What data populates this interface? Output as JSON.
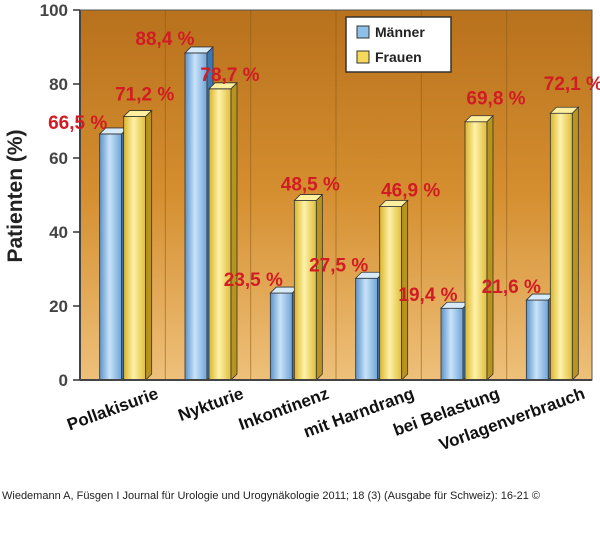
{
  "chart_data": {
    "type": "bar",
    "title": "",
    "xlabel": "",
    "ylabel": "Patienten (%)",
    "ylim": [
      0,
      100
    ],
    "yticks": [
      0,
      20,
      40,
      60,
      80,
      100
    ],
    "categories": [
      "Pollakisurie",
      "Nykturie",
      "Inkontinenz",
      "mit Harndrang",
      "bei Belastung",
      "Vorlagenverbrauch"
    ],
    "series": [
      {
        "name": "Männer",
        "color": "#8fc0ea",
        "values": [
          66.5,
          88.4,
          23.5,
          27.5,
          19.4,
          21.6
        ],
        "labels": [
          "66,5 %",
          "88,4 %",
          "23,5 %",
          "27,5 %",
          "19,4 %",
          "21,6 %"
        ]
      },
      {
        "name": "Frauen",
        "color": "#f6d95a",
        "values": [
          71.2,
          78.7,
          48.5,
          46.9,
          69.8,
          72.1
        ],
        "labels": [
          "71,2 %",
          "78,7 %",
          "48,5 %",
          "46,9 %",
          "69,8 %",
          "72,1 %"
        ]
      }
    ],
    "label_color": "#d11c24",
    "background_color": "#cf8a2a",
    "legend_position": "top-right",
    "grid": false
  },
  "source": "Wiedemann A, Füsgen I Journal für Urologie und Urogynäkologie 2011; 18 (3) (Ausgabe für Schweiz): 16-21 ©"
}
